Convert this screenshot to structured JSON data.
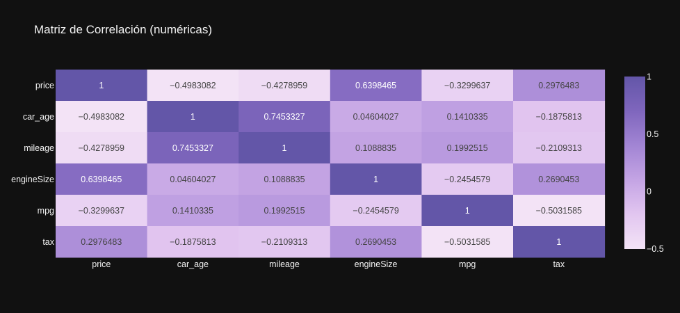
{
  "chart_data": {
    "type": "heatmap",
    "title": "Matriz de Correlación (numéricas)",
    "x_categories": [
      "price",
      "car_age",
      "mileage",
      "engineSize",
      "mpg",
      "tax"
    ],
    "y_categories": [
      "price",
      "car_age",
      "mileage",
      "engineSize",
      "mpg",
      "tax"
    ],
    "z": [
      [
        1,
        -0.4983082,
        -0.4278959,
        0.6398465,
        -0.3299637,
        0.2976483
      ],
      [
        -0.4983082,
        1,
        0.7453327,
        0.04604027,
        0.1410335,
        -0.1875813
      ],
      [
        -0.4278959,
        0.7453327,
        1,
        0.1088835,
        0.1992515,
        -0.2109313
      ],
      [
        0.6398465,
        0.04604027,
        0.1088835,
        1,
        -0.2454579,
        0.2690453
      ],
      [
        -0.3299637,
        0.1410335,
        0.1992515,
        -0.2454579,
        1,
        -0.5031585
      ],
      [
        0.2976483,
        -0.1875813,
        -0.2109313,
        0.2690453,
        -0.5031585,
        1
      ]
    ],
    "cell_labels": [
      [
        "1",
        "−0.4983082",
        "−0.4278959",
        "0.6398465",
        "−0.3299637",
        "0.2976483"
      ],
      [
        "−0.4983082",
        "1",
        "0.7453327",
        "0.04604027",
        "0.1410335",
        "−0.1875813"
      ],
      [
        "−0.4278959",
        "0.7453327",
        "1",
        "0.1088835",
        "0.1992515",
        "−0.2109313"
      ],
      [
        "0.6398465",
        "0.04604027",
        "0.1088835",
        "1",
        "−0.2454579",
        "0.2690453"
      ],
      [
        "−0.3299637",
        "0.1410335",
        "0.1992515",
        "−0.2454579",
        "1",
        "−0.5031585"
      ],
      [
        "0.2976483",
        "−0.1875813",
        "−0.2109313",
        "0.2690453",
        "−0.5031585",
        "1"
      ]
    ],
    "zrange": [
      -0.5031585,
      1
    ],
    "colorbar_ticks": [
      {
        "value": 1,
        "label": "1"
      },
      {
        "value": 0.5,
        "label": "0.5"
      },
      {
        "value": 0,
        "label": "0"
      },
      {
        "value": -0.5,
        "label": "−0.5"
      }
    ],
    "colorscale": [
      "#f3e3f6",
      "#e2c6f0",
      "#c4a4e4",
      "#a285d4",
      "#7f66bd",
      "#6356a8"
    ],
    "background": "#111111",
    "text_color": "#f2f2f2"
  }
}
